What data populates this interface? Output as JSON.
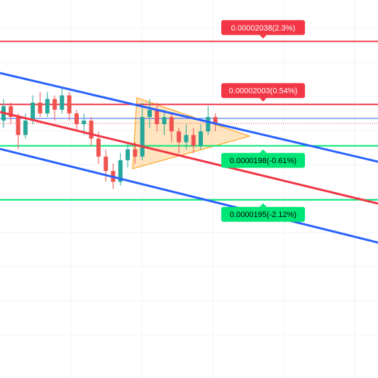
{
  "chart_data": {
    "type": "candlestick",
    "ylim": [
      1.851e-05,
      2.061e-05
    ],
    "open": [
      1.994e-05,
      2.002e-05,
      1.996e-05,
      1.986e-05,
      1.994e-05,
      2.004e-05,
      1.998e-05,
      2.006e-05,
      2e-05,
      2.008e-05,
      1.998e-05,
      1.992e-05,
      1.994e-05,
      1.984e-05,
      1.974e-05,
      1.966e-05,
      1.96e-05,
      1.972e-05,
      1.978e-05,
      1.974e-05,
      1.996e-05,
      2e-05,
      1.992e-05,
      1.996e-05,
      1.988e-05,
      1.982e-05,
      1.986e-05,
      1.98e-05,
      1.988e-05,
      1.996e-05
    ],
    "high": [
      2.006e-05,
      2.004e-05,
      1.998e-05,
      1.998e-05,
      2.008e-05,
      2.01e-05,
      2.01e-05,
      2.008e-05,
      2.012e-05,
      2.01e-05,
      2e-05,
      1.998e-05,
      1.996e-05,
      1.988e-05,
      1.978e-05,
      1.97e-05,
      1.976e-05,
      1.982e-05,
      1.982e-05,
      2.004e-05,
      2.006e-05,
      2.004e-05,
      2e-05,
      1.998e-05,
      1.99e-05,
      1.992e-05,
      1.99e-05,
      1.992e-05,
      2.002e-05,
      1.998e-05
    ],
    "low": [
      1.99e-05,
      1.992e-05,
      1.978e-05,
      1.984e-05,
      1.992e-05,
      1.996e-05,
      1.996e-05,
      1.994e-05,
      1.998e-05,
      1.994e-05,
      1.988e-05,
      1.986e-05,
      1.98e-05,
      1.97e-05,
      1.96e-05,
      1.956e-05,
      1.958e-05,
      1.968e-05,
      1.97e-05,
      1.972e-05,
      1.99e-05,
      1.988e-05,
      1.986e-05,
      1.982e-05,
      1.976e-05,
      1.978e-05,
      1.976e-05,
      1.978e-05,
      1.986e-05,
      1.988e-05
    ],
    "close": [
      2.002e-05,
      1.996e-05,
      1.986e-05,
      1.994e-05,
      2.004e-05,
      1.998e-05,
      2.006e-05,
      2e-05,
      2.008e-05,
      1.998e-05,
      1.992e-05,
      1.994e-05,
      1.984e-05,
      1.974e-05,
      1.966e-05,
      1.96e-05,
      1.972e-05,
      1.978e-05,
      1.974e-05,
      1.996e-05,
      2e-05,
      1.992e-05,
      1.996e-05,
      1.988e-05,
      1.982e-05,
      1.986e-05,
      1.98e-05,
      1.988e-05,
      1.996e-05,
      1.992e-05
    ],
    "up_color": "#26a69a",
    "down_color": "#ef5350",
    "levels": [
      {
        "value": 2.038e-05,
        "label": "0.00002038(2.3%)",
        "color": "#f23645"
      },
      {
        "value": 2.003e-05,
        "label": "0.00002003(0.54%)",
        "color": "#f23645"
      },
      {
        "value": 1.98e-05,
        "label": "0.0000198(-0.61%)",
        "color": "#00e676"
      },
      {
        "value": 1.95e-05,
        "label": "0.0000195(-2.12%)",
        "color": "#00e676"
      }
    ]
  }
}
